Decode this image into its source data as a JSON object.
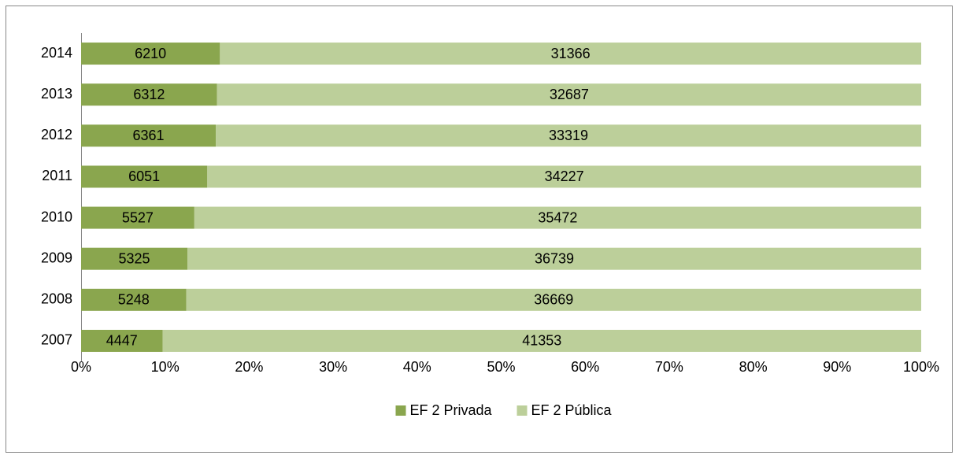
{
  "chart_data": {
    "type": "bar",
    "orientation": "horizontal",
    "stacking": "percent",
    "categories": [
      "2014",
      "2013",
      "2012",
      "2011",
      "2010",
      "2009",
      "2008",
      "2007"
    ],
    "series": [
      {
        "name": "EF 2 Privada",
        "color": "#8aa64e",
        "values": [
          6210,
          6312,
          6361,
          6051,
          5527,
          5325,
          5248,
          4447
        ]
      },
      {
        "name": "EF 2 Pública",
        "color": "#bccf9a",
        "values": [
          31366,
          32687,
          33319,
          34227,
          35472,
          36739,
          36669,
          41353
        ]
      }
    ],
    "xlim": [
      0,
      100
    ],
    "xticks": [
      {
        "value": 0,
        "label": "0%"
      },
      {
        "value": 10,
        "label": "10%"
      },
      {
        "value": 20,
        "label": "20%"
      },
      {
        "value": 30,
        "label": "30%"
      },
      {
        "value": 40,
        "label": "40%"
      },
      {
        "value": 50,
        "label": "50%"
      },
      {
        "value": 60,
        "label": "60%"
      },
      {
        "value": 70,
        "label": "70%"
      },
      {
        "value": 80,
        "label": "80%"
      },
      {
        "value": 90,
        "label": "90%"
      },
      {
        "value": 100,
        "label": "100%"
      }
    ],
    "legend": "bottom"
  }
}
